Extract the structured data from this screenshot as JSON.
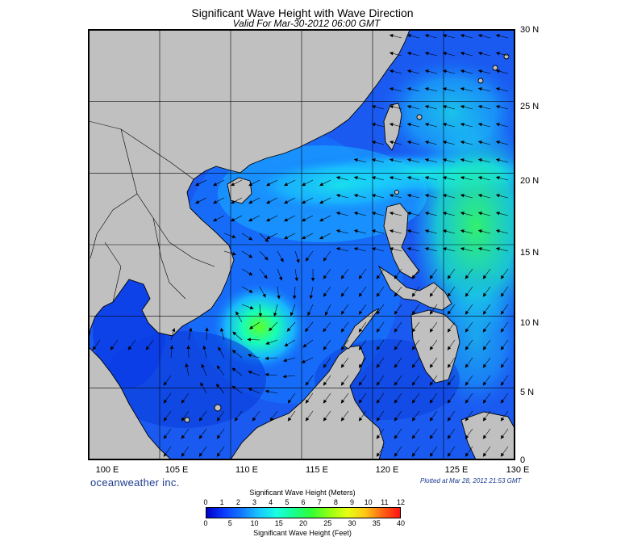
{
  "header": {
    "title": "Significant Wave Height with Wave Direction",
    "subtitle": "Valid For Mar-30-2012 06:00 GMT"
  },
  "map": {
    "lon_range": [
      100,
      130
    ],
    "lat_range": [
      0,
      30
    ],
    "lat_labels": [
      "30 N",
      "25 N",
      "20 N",
      "15 N",
      "10 N",
      "5 N",
      "0"
    ],
    "lon_labels": [
      "100 E",
      "105 E",
      "110 E",
      "115 E",
      "120 E",
      "125 E",
      "130 E"
    ],
    "land_color": "#c0c0c0",
    "ocean_base_color": "#1a4cf0",
    "wave_max_center": {
      "lon": 111,
      "lat": 10,
      "meters": 4.5
    }
  },
  "footer": {
    "brand": "oceanweather inc.",
    "plotted": "Plotted at Mar 28, 2012 21:53 GMT"
  },
  "legend": {
    "title_meters": "Significant Wave Height (Meters)",
    "title_feet": "Significant Wave Height (Feet)",
    "meters_ticks": [
      "0",
      "1",
      "2",
      "3",
      "4",
      "5",
      "6",
      "7",
      "8",
      "9",
      "10",
      "11",
      "12"
    ],
    "feet_ticks": [
      "0",
      "5",
      "10",
      "15",
      "20",
      "25",
      "30",
      "35",
      "40"
    ],
    "gradient_colors": [
      "#0000c8",
      "#0a3cff",
      "#1478ff",
      "#19c8ff",
      "#19ffe0",
      "#19ff8c",
      "#32ff32",
      "#96ff14",
      "#e6ff14",
      "#ffc814",
      "#ff6414",
      "#ff1414"
    ]
  }
}
